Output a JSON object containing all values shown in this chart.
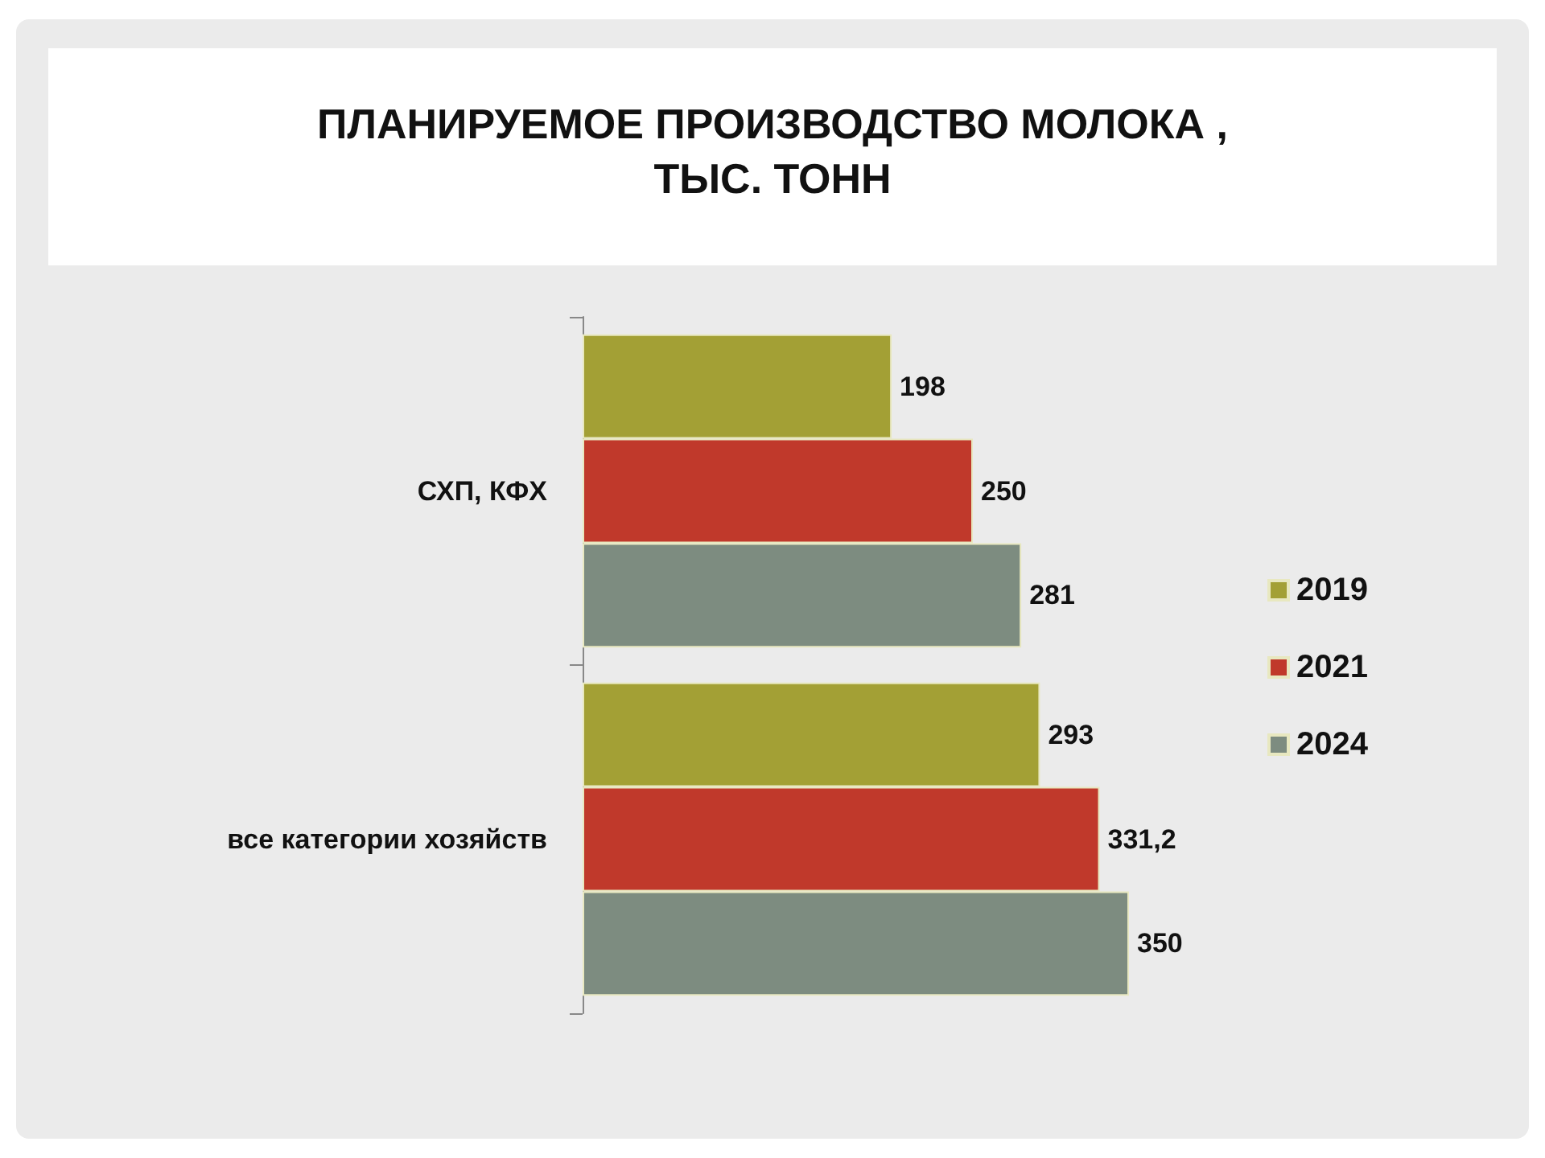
{
  "chart_data": {
    "type": "bar",
    "orientation": "horizontal",
    "title": "ПЛАНИРУЕМОЕ ПРОИЗВОДСТВО МОЛОКА ,\nТЫС. ТОНН",
    "categories": [
      "СХП, КФХ",
      "все категории хозяйств"
    ],
    "series": [
      {
        "name": "2019",
        "color": "#a3a035",
        "values": [
          198,
          293
        ],
        "value_labels": [
          "198",
          "293"
        ]
      },
      {
        "name": "2021",
        "color": "#c0392b",
        "values": [
          250,
          331.2
        ],
        "value_labels": [
          "250",
          "331,2"
        ]
      },
      {
        "name": "2024",
        "color": "#7d8c80",
        "values": [
          281,
          350
        ],
        "value_labels": [
          "281",
          "350"
        ]
      }
    ],
    "legend": "right"
  }
}
